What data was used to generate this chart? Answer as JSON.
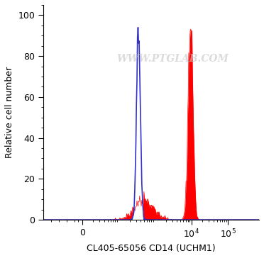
{
  "xlabel": "CL405-65056 CD14 (UCHM1)",
  "ylabel": "Relative cell number",
  "watermark": "WWW.PTGLAB.COM",
  "ylim": [
    0,
    105
  ],
  "yticks": [
    0,
    20,
    40,
    60,
    80,
    100
  ],
  "blue_color": "#3333cc",
  "red_color": "#ff0000",
  "red_fill_color": "#ff0000",
  "background_color": "#ffffff",
  "watermark_color": "#c8c8c8",
  "fig_width": 3.72,
  "fig_height": 3.64,
  "dpi": 100
}
